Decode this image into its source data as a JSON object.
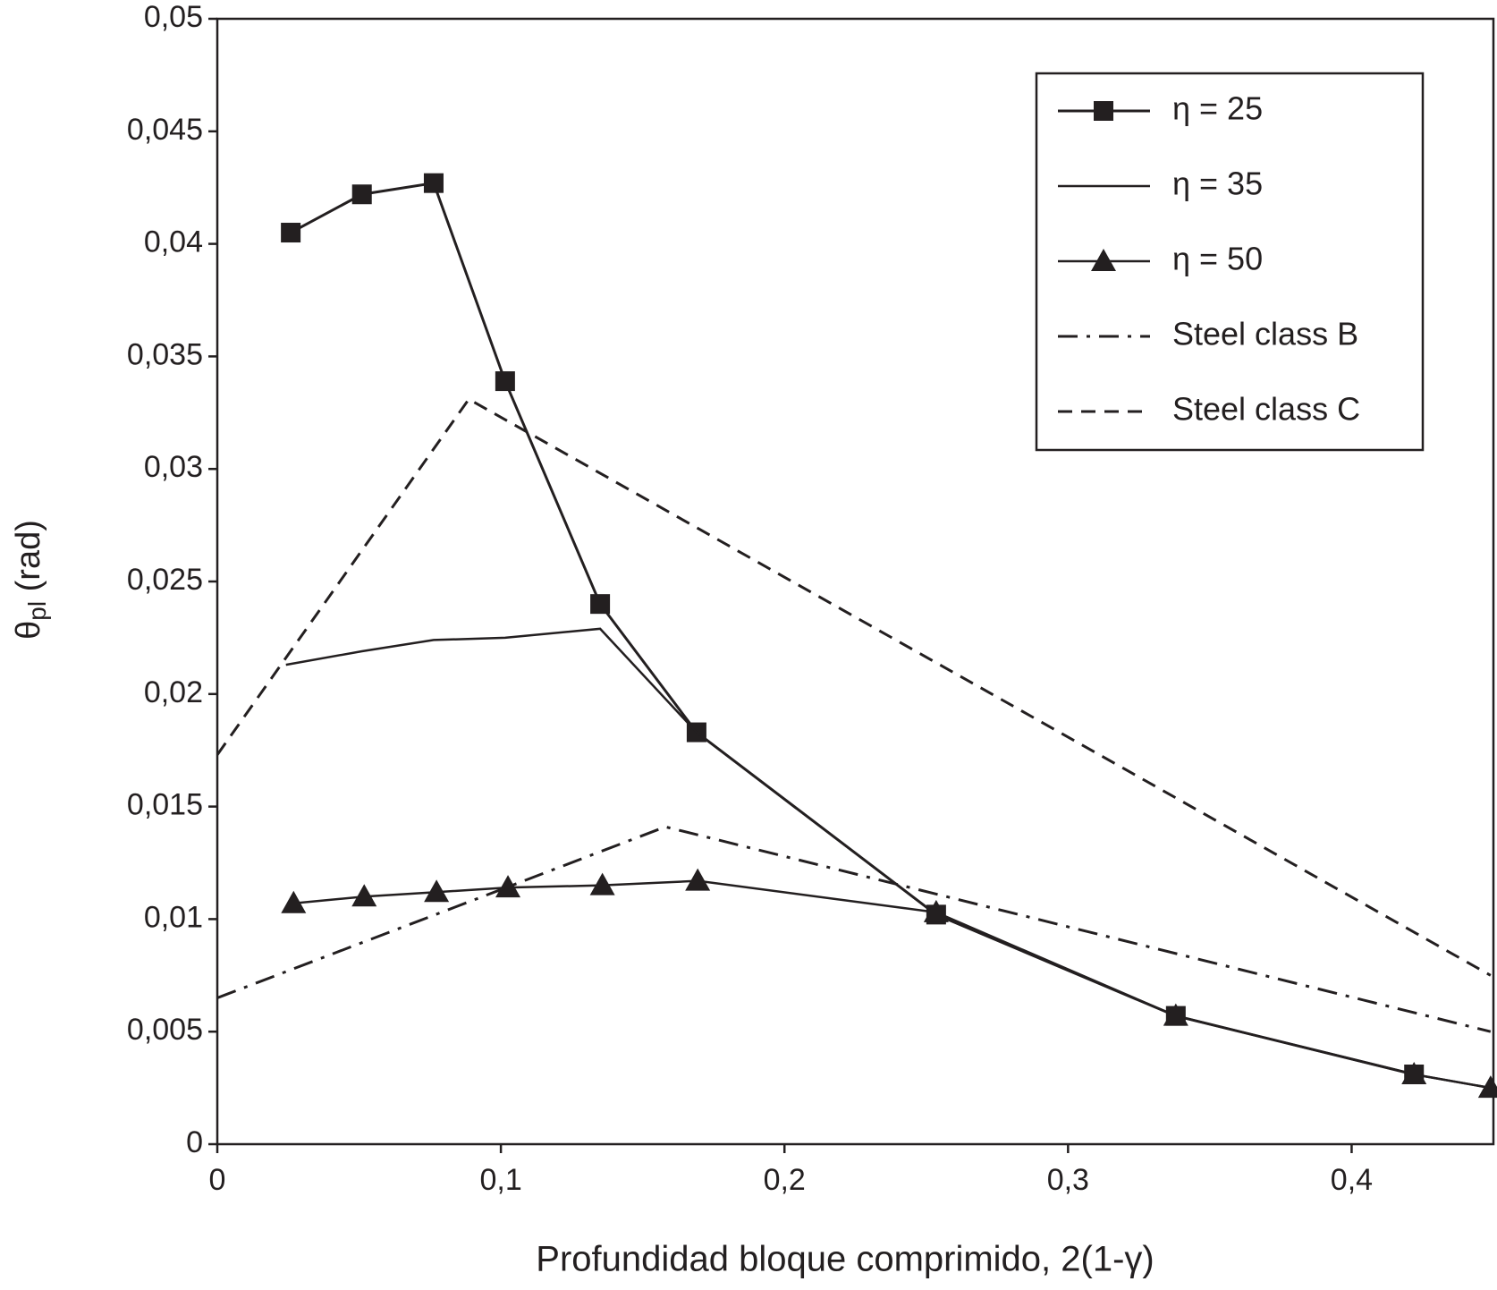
{
  "chart_data": {
    "type": "line",
    "x_label": "Profundidad bloque comprimido, 2(1-γ)",
    "y_label": [
      "θ",
      "pl",
      " (rad)"
    ],
    "xlim": [
      0,
      0.45
    ],
    "ylim": [
      0,
      0.05
    ],
    "xticks": [
      0,
      {
        "value": 0.1,
        "label": "0,1"
      },
      {
        "value": 0.2,
        "label": "0,2"
      },
      {
        "value": 0.3,
        "label": "0,3"
      },
      {
        "value": 0.4,
        "label": "0,4"
      }
    ],
    "yticks": [
      0,
      {
        "value": 0.005,
        "label": "0,005"
      },
      {
        "value": 0.01,
        "label": "0,01"
      },
      {
        "value": 0.015,
        "label": "0,015"
      },
      {
        "value": 0.02,
        "label": "0,02"
      },
      {
        "value": 0.025,
        "label": "0,025"
      },
      {
        "value": 0.03,
        "label": "0,03"
      },
      {
        "value": 0.035,
        "label": "0,035"
      },
      {
        "value": 0.04,
        "label": "0,04"
      },
      {
        "value": 0.045,
        "label": "0,045"
      },
      {
        "value": 0.05,
        "label": "0,05"
      }
    ],
    "grid": false,
    "legend": "upper right",
    "series": [
      {
        "name": "η = 25",
        "color": "#231f20",
        "marker": "square",
        "dash": "solid",
        "width": 3,
        "x": [
          0.0259,
          0.051,
          0.0763,
          0.1015,
          0.135,
          0.169,
          0.2535,
          0.338,
          0.422
        ],
        "values": [
          0.0405,
          0.0422,
          0.0427,
          0.0339,
          0.024,
          0.0183,
          0.0102,
          0.0057,
          0.0031
        ]
      },
      {
        "name": "η = 35",
        "color": "#231f20",
        "marker": "none",
        "dash": "solid",
        "width": 2.5,
        "x": [
          0.0242,
          0.051,
          0.0763,
          0.1015,
          0.135,
          0.169,
          0.2535,
          0.338,
          0.422,
          0.449
        ],
        "values": [
          0.0213,
          0.0219,
          0.0224,
          0.0225,
          0.0229,
          0.0183,
          0.0102,
          0.0057,
          0.0031,
          0.0025
        ]
      },
      {
        "name": "η = 50",
        "color": "#231f20",
        "marker": "triangle",
        "dash": "solid",
        "width": 2.5,
        "x": [
          0.0269,
          0.0518,
          0.0773,
          0.1025,
          0.1358,
          0.1694,
          0.2535,
          0.338,
          0.422,
          0.449
        ],
        "values": [
          0.0107,
          0.011,
          0.0112,
          0.0114,
          0.0115,
          0.0117,
          0.0103,
          0.0057,
          0.0031,
          0.0025
        ]
      },
      {
        "name": "Steel class B",
        "color": "#231f20",
        "marker": "none",
        "dash": "dashdot",
        "width": 3,
        "x": [
          0,
          0.158,
          0.449
        ],
        "values": [
          0.0065,
          0.0141,
          0.005
        ]
      },
      {
        "name": "Steel class C",
        "color": "#231f20",
        "marker": "none",
        "dash": "dash",
        "width": 3,
        "x": [
          0,
          0.0887,
          0.449
        ],
        "values": [
          0.0173,
          0.0331,
          0.0075
        ]
      }
    ]
  }
}
